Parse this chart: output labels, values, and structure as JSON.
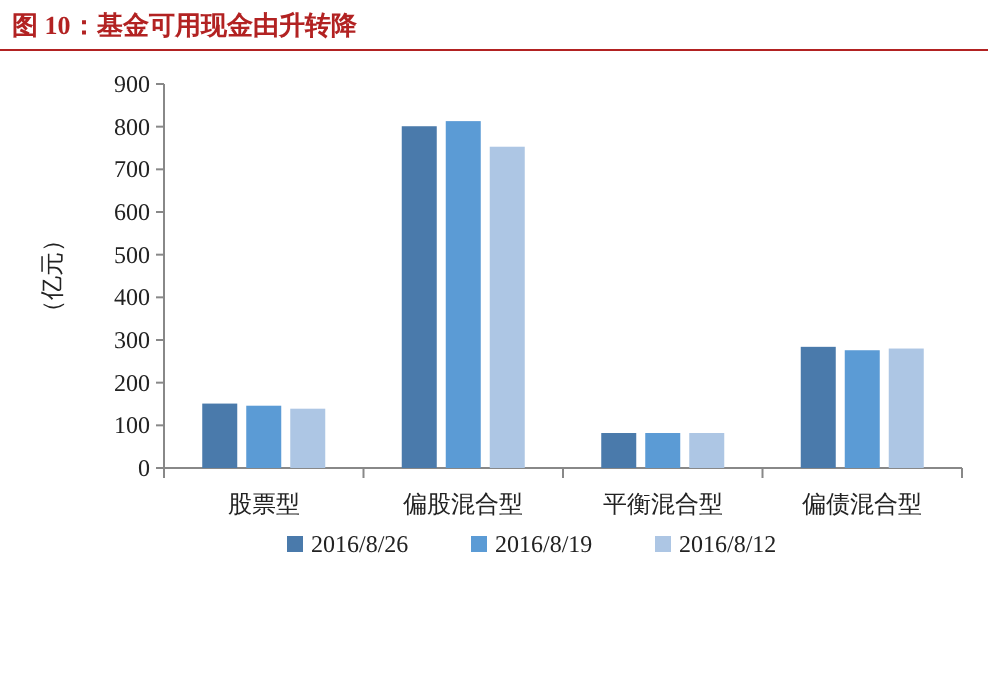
{
  "chart_data": {
    "type": "bar",
    "title": "图 10：基金可用现金由升转降",
    "ylabel": "（亿元）",
    "categories": [
      "股票型",
      "偏股混合型",
      "平衡混合型",
      "偏债混合型"
    ],
    "series": [
      {
        "name": "2016/8/26",
        "color": "#4a7aab",
        "values": [
          151,
          801,
          82,
          284
        ]
      },
      {
        "name": "2016/8/19",
        "color": "#5b9bd5",
        "values": [
          146,
          813,
          82,
          276
        ]
      },
      {
        "name": "2016/8/12",
        "color": "#adc6e4",
        "values": [
          139,
          753,
          82,
          280
        ]
      }
    ],
    "ylim": [
      0,
      900
    ],
    "yticks": [
      0,
      100,
      200,
      300,
      400,
      500,
      600,
      700,
      800,
      900
    ],
    "legend": "bottom",
    "grid": false
  }
}
